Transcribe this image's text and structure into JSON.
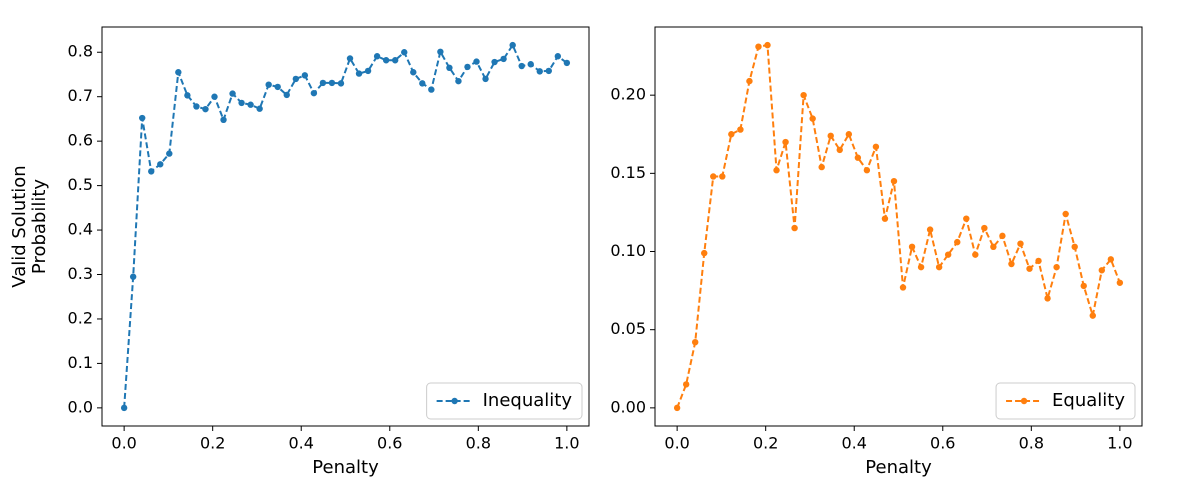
{
  "chart_data": [
    {
      "type": "line",
      "xlabel": "Penalty",
      "ylabel": "Valid Solution\nProbability",
      "x": [
        0,
        0.0204,
        0.0408,
        0.0612,
        0.0816,
        0.102,
        0.1224,
        0.1429,
        0.1633,
        0.1837,
        0.2041,
        0.2245,
        0.2449,
        0.2653,
        0.2857,
        0.3061,
        0.3265,
        0.3469,
        0.3673,
        0.3878,
        0.4082,
        0.4286,
        0.449,
        0.4694,
        0.4898,
        0.5102,
        0.5306,
        0.551,
        0.5714,
        0.5918,
        0.6122,
        0.6327,
        0.6531,
        0.6735,
        0.6939,
        0.7143,
        0.7347,
        0.7551,
        0.7755,
        0.7959,
        0.8163,
        0.8367,
        0.8571,
        0.8776,
        0.898,
        0.9184,
        0.9388,
        0.9592,
        0.9796,
        1.0
      ],
      "series": [
        {
          "name": "Inequality",
          "color": "#1f77b4",
          "linestyle": "dashed",
          "marker": "o",
          "values": [
            0.0,
            0.295,
            0.652,
            0.532,
            0.548,
            0.572,
            0.755,
            0.703,
            0.678,
            0.672,
            0.7,
            0.648,
            0.707,
            0.686,
            0.682,
            0.673,
            0.727,
            0.722,
            0.704,
            0.74,
            0.748,
            0.708,
            0.731,
            0.731,
            0.73,
            0.786,
            0.752,
            0.758,
            0.791,
            0.782,
            0.782,
            0.8,
            0.755,
            0.73,
            0.716,
            0.801,
            0.765,
            0.735,
            0.767,
            0.779,
            0.74,
            0.778,
            0.785,
            0.816,
            0.769,
            0.773,
            0.757,
            0.758,
            0.791,
            0.776
          ]
        }
      ],
      "xlim": [
        -0.05,
        1.05
      ],
      "ylim": [
        -0.0408,
        0.8568
      ],
      "xticks": [
        {
          "value": 0,
          "label": "0.0"
        },
        0.2,
        0.4,
        0.6,
        0.8,
        {
          "value": 1,
          "label": "1.0"
        }
      ],
      "yticks": [
        {
          "value": 0,
          "label": "0.0"
        },
        0.1,
        0.2,
        0.3,
        0.4,
        0.5,
        0.6,
        0.7,
        0.8
      ],
      "legend": "lower right"
    },
    {
      "type": "line",
      "xlabel": "Penalty",
      "x": [
        0,
        0.0204,
        0.0408,
        0.0612,
        0.0816,
        0.102,
        0.1224,
        0.1429,
        0.1633,
        0.1837,
        0.2041,
        0.2245,
        0.2449,
        0.2653,
        0.2857,
        0.3061,
        0.3265,
        0.3469,
        0.3673,
        0.3878,
        0.4082,
        0.4286,
        0.449,
        0.4694,
        0.4898,
        0.5102,
        0.5306,
        0.551,
        0.5714,
        0.5918,
        0.6122,
        0.6327,
        0.6531,
        0.6735,
        0.6939,
        0.7143,
        0.7347,
        0.7551,
        0.7755,
        0.7959,
        0.8163,
        0.8367,
        0.8571,
        0.8776,
        0.898,
        0.9184,
        0.9388,
        0.9592,
        0.9796,
        1.0
      ],
      "series": [
        {
          "name": "Equality",
          "color": "#ff7f0e",
          "linestyle": "dashed",
          "marker": "o",
          "values": [
            0.0,
            0.015,
            0.042,
            0.099,
            0.148,
            0.148,
            0.175,
            0.178,
            0.209,
            0.231,
            0.232,
            0.152,
            0.17,
            0.115,
            0.2,
            0.185,
            0.154,
            0.174,
            0.165,
            0.175,
            0.16,
            0.152,
            0.167,
            0.121,
            0.145,
            0.077,
            0.103,
            0.09,
            0.114,
            0.09,
            0.098,
            0.106,
            0.121,
            0.098,
            0.115,
            0.103,
            0.11,
            0.092,
            0.105,
            0.089,
            0.094,
            0.07,
            0.09,
            0.124,
            0.103,
            0.078,
            0.059,
            0.088,
            0.095,
            0.08
          ]
        }
      ],
      "xlim": [
        -0.05,
        1.05
      ],
      "ylim": [
        -0.0116,
        0.2436
      ],
      "xticks": [
        {
          "value": 0,
          "label": "0.0"
        },
        0.2,
        0.4,
        0.6,
        0.8,
        {
          "value": 1,
          "label": "1.0"
        }
      ],
      "yticks": [
        {
          "value": 0,
          "label": "0.00"
        },
        {
          "value": 0.05,
          "label": "0.05"
        },
        {
          "value": 0.1,
          "label": "0.10"
        },
        {
          "value": 0.15,
          "label": "0.15"
        },
        {
          "value": 0.2,
          "label": "0.20"
        }
      ],
      "legend": "lower right"
    }
  ]
}
